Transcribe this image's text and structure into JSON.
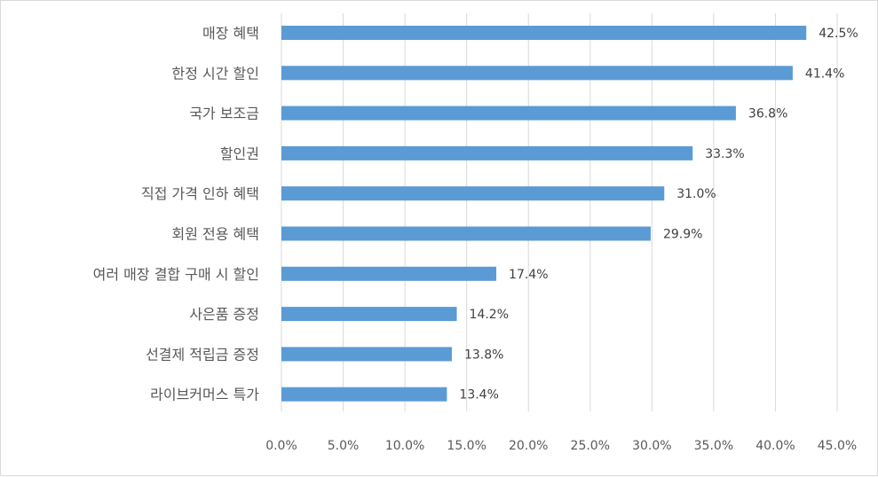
{
  "chart_data": {
    "type": "bar",
    "orientation": "horizontal",
    "title": "",
    "xlabel": "",
    "ylabel": "",
    "categories": [
      "매장 혜택",
      "한정 시간 할인",
      "국가 보조금",
      "할인권",
      "직접 가격 인하 혜택",
      "회원 전용 혜택",
      "여러 매장 결합 구매 시 할인",
      "사은품 증정",
      "선결제 적립금 증정",
      "라이브커머스 특가"
    ],
    "values": [
      42.5,
      41.4,
      36.8,
      33.3,
      31.0,
      29.9,
      17.4,
      14.2,
      13.8,
      13.4
    ],
    "value_labels": [
      "42.5%",
      "41.4%",
      "36.8%",
      "33.3%",
      "31.0%",
      "29.9%",
      "17.4%",
      "14.2%",
      "13.8%",
      "13.4%"
    ],
    "xlim": [
      0,
      45
    ],
    "x_ticks": [
      0,
      5,
      10,
      15,
      20,
      25,
      30,
      35,
      40,
      45
    ],
    "x_tick_labels": [
      "0.0%",
      "5.0%",
      "10.0%",
      "15.0%",
      "20.0%",
      "25.0%",
      "30.0%",
      "35.0%",
      "40.0%",
      "45.0%"
    ],
    "grid": "vertical",
    "legend": "none",
    "colors": {
      "bar": "#5B9BD5",
      "grid": "#d9d9d9",
      "text": "#595959",
      "data_label": "#404040"
    }
  }
}
